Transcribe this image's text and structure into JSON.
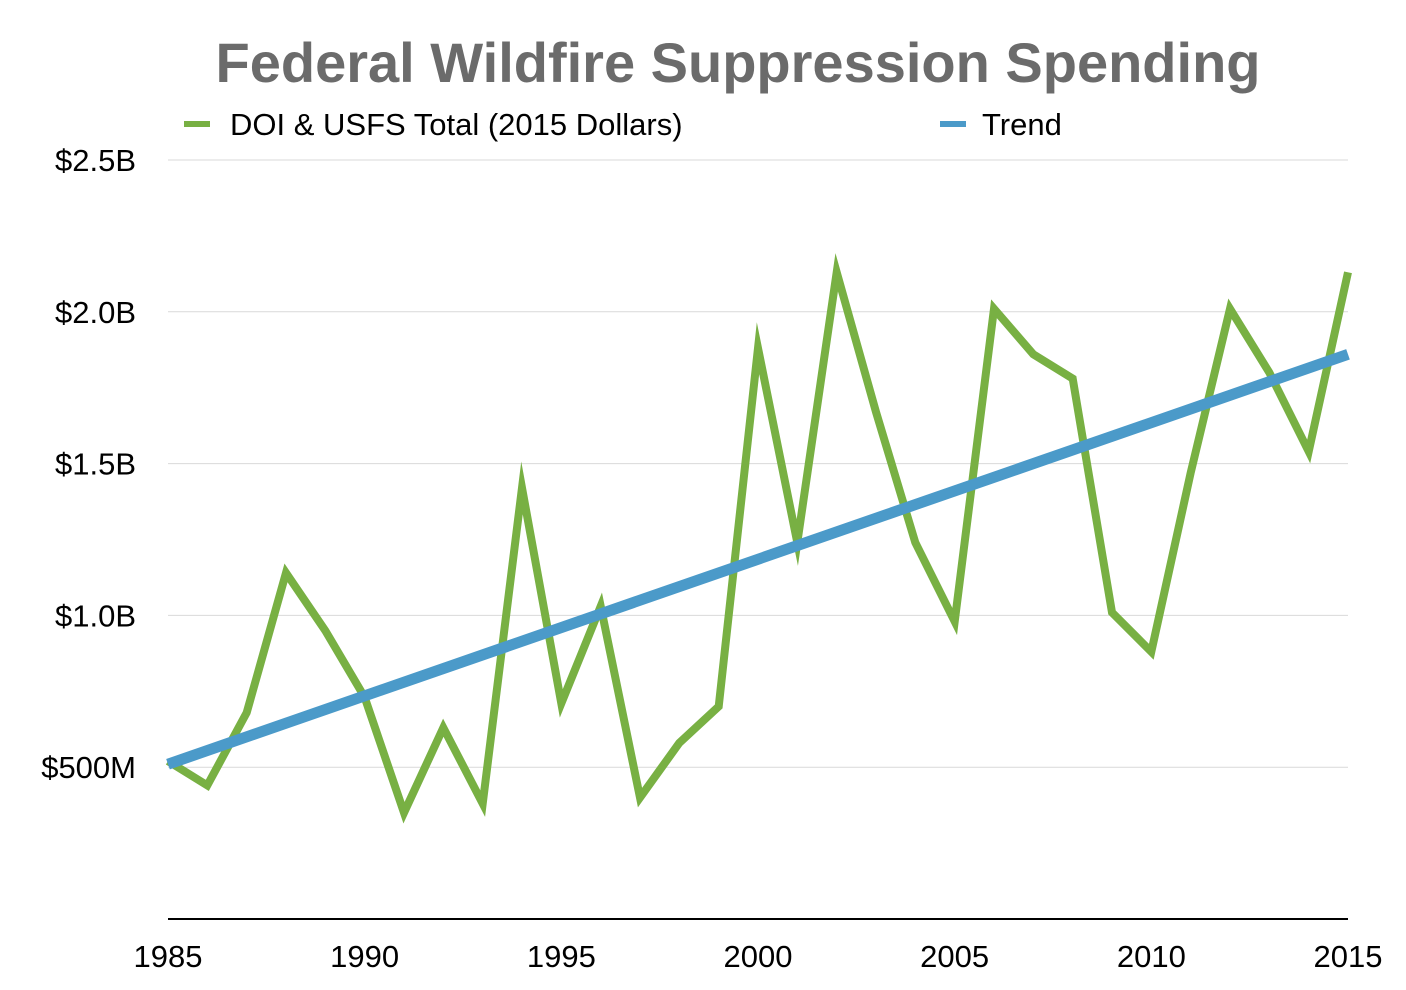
{
  "chart_data": {
    "type": "line",
    "title": "Federal Wildfire Suppression Spending",
    "xlabel": "",
    "ylabel": "",
    "xlim": [
      1985,
      2015
    ],
    "ylim": [
      0,
      2.5
    ],
    "y_ticks": [
      {
        "value": 0.5,
        "label": "$500M"
      },
      {
        "value": 1.0,
        "label": "$1.0B"
      },
      {
        "value": 1.5,
        "label": "$1.5B"
      },
      {
        "value": 2.0,
        "label": "$2.0B"
      },
      {
        "value": 2.5,
        "label": "$2.5B"
      }
    ],
    "x_ticks": [
      {
        "value": 1985,
        "label": "1985"
      },
      {
        "value": 1990,
        "label": "1990"
      },
      {
        "value": 1995,
        "label": "1995"
      },
      {
        "value": 2000,
        "label": "2000"
      },
      {
        "value": 2005,
        "label": "2005"
      },
      {
        "value": 2010,
        "label": "2010"
      },
      {
        "value": 2015,
        "label": "2015"
      }
    ],
    "grid": true,
    "legend_position": "top",
    "series": [
      {
        "name": "DOI & USFS Total (2015 Dollars)",
        "color": "#78b043",
        "x": [
          1985,
          1986,
          1987,
          1988,
          1989,
          1990,
          1991,
          1992,
          1993,
          1994,
          1995,
          1996,
          1997,
          1998,
          1999,
          2000,
          2001,
          2002,
          2003,
          2004,
          2005,
          2006,
          2007,
          2008,
          2009,
          2010,
          2011,
          2012,
          2013,
          2014,
          2015
        ],
        "values": [
          0.52,
          0.44,
          0.68,
          1.14,
          0.95,
          0.73,
          0.35,
          0.63,
          0.38,
          1.42,
          0.71,
          1.03,
          0.4,
          0.58,
          0.7,
          1.88,
          1.24,
          2.13,
          1.67,
          1.24,
          0.98,
          2.01,
          1.86,
          1.78,
          1.01,
          0.88,
          1.47,
          2.01,
          1.8,
          1.54,
          2.13
        ]
      },
      {
        "name": "Trend",
        "color": "#4b9ac9",
        "x": [
          1985,
          2015
        ],
        "values": [
          0.51,
          1.86
        ]
      }
    ]
  }
}
